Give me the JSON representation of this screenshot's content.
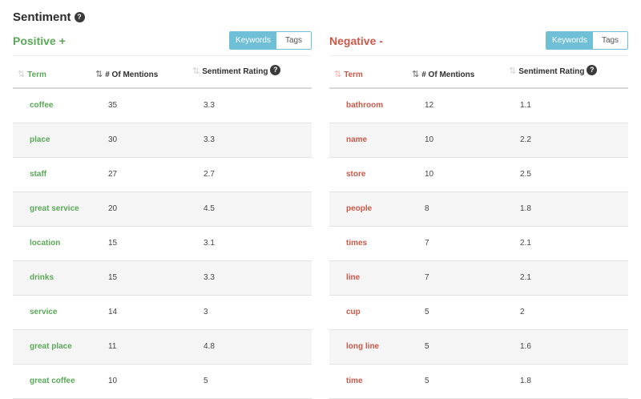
{
  "title": "Sentiment",
  "help_glyph": "?",
  "toggle": {
    "keywords": "Keywords",
    "tags": "Tags"
  },
  "columns": {
    "term": "Term",
    "mentions": "# Of Mentions",
    "rating": "Sentiment Rating"
  },
  "positive": {
    "title": "Positive +",
    "rows": [
      {
        "term": "coffee",
        "mentions": "35",
        "rating": "3.3"
      },
      {
        "term": "place",
        "mentions": "30",
        "rating": "3.3"
      },
      {
        "term": "staff",
        "mentions": "27",
        "rating": "2.7"
      },
      {
        "term": "great service",
        "mentions": "20",
        "rating": "4.5"
      },
      {
        "term": "location",
        "mentions": "15",
        "rating": "3.1"
      },
      {
        "term": "drinks",
        "mentions": "15",
        "rating": "3.3"
      },
      {
        "term": "service",
        "mentions": "14",
        "rating": "3"
      },
      {
        "term": "great place",
        "mentions": "11",
        "rating": "4.8"
      },
      {
        "term": "great coffee",
        "mentions": "10",
        "rating": "5"
      }
    ]
  },
  "negative": {
    "title": "Negative -",
    "rows": [
      {
        "term": "bathroom",
        "mentions": "12",
        "rating": "1.1"
      },
      {
        "term": "name",
        "mentions": "10",
        "rating": "2.2"
      },
      {
        "term": "store",
        "mentions": "10",
        "rating": "2.5"
      },
      {
        "term": "people",
        "mentions": "8",
        "rating": "1.8"
      },
      {
        "term": "times",
        "mentions": "7",
        "rating": "2.1"
      },
      {
        "term": "line",
        "mentions": "7",
        "rating": "2.1"
      },
      {
        "term": "cup",
        "mentions": "5",
        "rating": "2"
      },
      {
        "term": "long line",
        "mentions": "5",
        "rating": "1.6"
      },
      {
        "term": "time",
        "mentions": "5",
        "rating": "1.8"
      }
    ]
  },
  "colors": {
    "positive": "#5aa858",
    "negative": "#c9594a",
    "accent": "#6fbfd6"
  }
}
